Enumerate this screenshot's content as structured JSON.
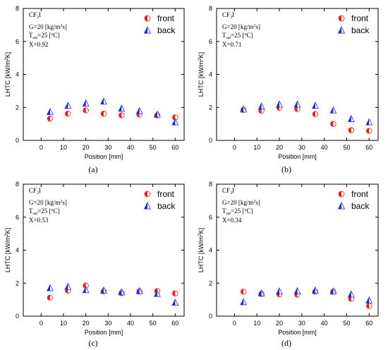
{
  "figure": {
    "legend": {
      "front": "front",
      "back": "back"
    },
    "colors": {
      "front_red": "#e8201c",
      "back_blue": "#1f2bd4"
    }
  },
  "chart_data": [
    {
      "type": "scatter",
      "panel_label": "(a)",
      "annotation": {
        "fluid": "CF",
        "fluid_sub": "3",
        "fluid_tail": "I",
        "G": "G=20 [kg/m",
        "G_sup": "2",
        "G_tail": "s]",
        "T": "T",
        "T_sub": "sat",
        "T_tail": "=25 [",
        "T_sup": "o",
        "T_end": "C]",
        "X": "X=0.92"
      },
      "xlabel": "Position [mm]",
      "ylabel": "LHTC [kW/m",
      "ylabel_sup": "2",
      "ylabel_tail": "K]",
      "xlim": [
        -8,
        64
      ],
      "ylim": [
        0,
        8
      ],
      "xticks": [
        0,
        10,
        20,
        30,
        40,
        50,
        60
      ],
      "yticks": [
        0,
        2,
        4,
        6,
        8
      ],
      "series": [
        {
          "name": "front",
          "x": [
            4,
            12,
            20,
            28,
            36,
            44,
            52,
            60
          ],
          "y": [
            1.32,
            1.62,
            1.82,
            1.62,
            1.52,
            1.57,
            1.52,
            1.4
          ]
        },
        {
          "name": "back",
          "x": [
            4,
            12,
            20,
            28,
            36,
            44,
            52,
            60
          ],
          "y": [
            1.72,
            2.1,
            2.24,
            2.36,
            1.93,
            1.78,
            1.57,
            1.1
          ]
        }
      ]
    },
    {
      "type": "scatter",
      "panel_label": "(b)",
      "annotation": {
        "fluid": "CF",
        "fluid_sub": "3",
        "fluid_tail": "I",
        "G": "G=20 [kg/m",
        "G_sup": "2",
        "G_tail": "s]",
        "T": "T",
        "T_sub": "sat",
        "T_tail": "=25 [",
        "T_sup": "o",
        "T_end": "C]",
        "X": "X=0.71"
      },
      "xlabel": "Position [mm]",
      "ylabel": "LHTC [kW/m",
      "ylabel_sup": "2",
      "ylabel_tail": "K]",
      "xlim": [
        -8,
        64
      ],
      "ylim": [
        0,
        8
      ],
      "xticks": [
        0,
        10,
        20,
        30,
        40,
        50,
        60
      ],
      "yticks": [
        0,
        2,
        4,
        6,
        8
      ],
      "series": [
        {
          "name": "front",
          "x": [
            4,
            12,
            20,
            28,
            36,
            44,
            52,
            60
          ],
          "y": [
            1.85,
            1.8,
            1.98,
            1.9,
            1.6,
            1.0,
            0.62,
            0.58
          ]
        },
        {
          "name": "back",
          "x": [
            4,
            12,
            20,
            28,
            36,
            44,
            52,
            60
          ],
          "y": [
            1.88,
            2.06,
            2.18,
            2.18,
            2.1,
            1.82,
            1.3,
            1.1
          ]
        }
      ]
    },
    {
      "type": "scatter",
      "panel_label": "(c)",
      "annotation": {
        "fluid": "CF",
        "fluid_sub": "3",
        "fluid_tail": "I",
        "G": "G=20 [kg/m",
        "G_sup": "2",
        "G_tail": "s]",
        "T": "T",
        "T_sub": "sat",
        "T_tail": "=25 [",
        "T_sup": "o",
        "T_end": "C]",
        "X": "X=0.53"
      },
      "xlabel": "Position [mm]",
      "ylabel": "LHTC [kW/m",
      "ylabel_sup": "2",
      "ylabel_tail": "K]",
      "xlim": [
        -8,
        64
      ],
      "ylim": [
        0,
        8
      ],
      "xticks": [
        0,
        10,
        20,
        30,
        40,
        50,
        60
      ],
      "yticks": [
        0,
        2,
        4,
        6,
        8
      ],
      "series": [
        {
          "name": "front",
          "x": [
            4,
            12,
            20,
            28,
            36,
            44,
            52,
            60
          ],
          "y": [
            1.12,
            1.55,
            1.85,
            1.5,
            1.4,
            1.5,
            1.52,
            1.38
          ]
        },
        {
          "name": "back",
          "x": [
            4,
            12,
            20,
            28,
            36,
            44,
            52,
            60
          ],
          "y": [
            1.7,
            1.78,
            1.58,
            1.55,
            1.45,
            1.52,
            1.35,
            0.82
          ]
        }
      ]
    },
    {
      "type": "scatter",
      "panel_label": "(d)",
      "annotation": {
        "fluid": "CF",
        "fluid_sub": "3",
        "fluid_tail": "I",
        "G": "G=20 [kg/m",
        "G_sup": "2",
        "G_tail": "s]",
        "T": "T",
        "T_sub": "sat",
        "T_tail": "=25 [",
        "T_sup": "o",
        "T_end": "C]",
        "X": "X=0.34"
      },
      "xlabel": "Position [mm]",
      "ylabel": "LHTC [kW/m",
      "ylabel_sup": "2",
      "ylabel_tail": "K]",
      "xlim": [
        -8,
        64
      ],
      "ylim": [
        0,
        8
      ],
      "xticks": [
        0,
        10,
        20,
        30,
        40,
        50,
        60
      ],
      "yticks": [
        0,
        2,
        4,
        6,
        8
      ],
      "series": [
        {
          "name": "front",
          "x": [
            4,
            12,
            20,
            28,
            36,
            44,
            52,
            60
          ],
          "y": [
            1.48,
            1.35,
            1.32,
            1.3,
            1.48,
            1.48,
            1.05,
            0.62
          ]
        },
        {
          "name": "back",
          "x": [
            4,
            12,
            20,
            28,
            36,
            44,
            52,
            60
          ],
          "y": [
            0.85,
            1.38,
            1.5,
            1.52,
            1.55,
            1.5,
            1.32,
            0.95
          ]
        }
      ]
    }
  ]
}
